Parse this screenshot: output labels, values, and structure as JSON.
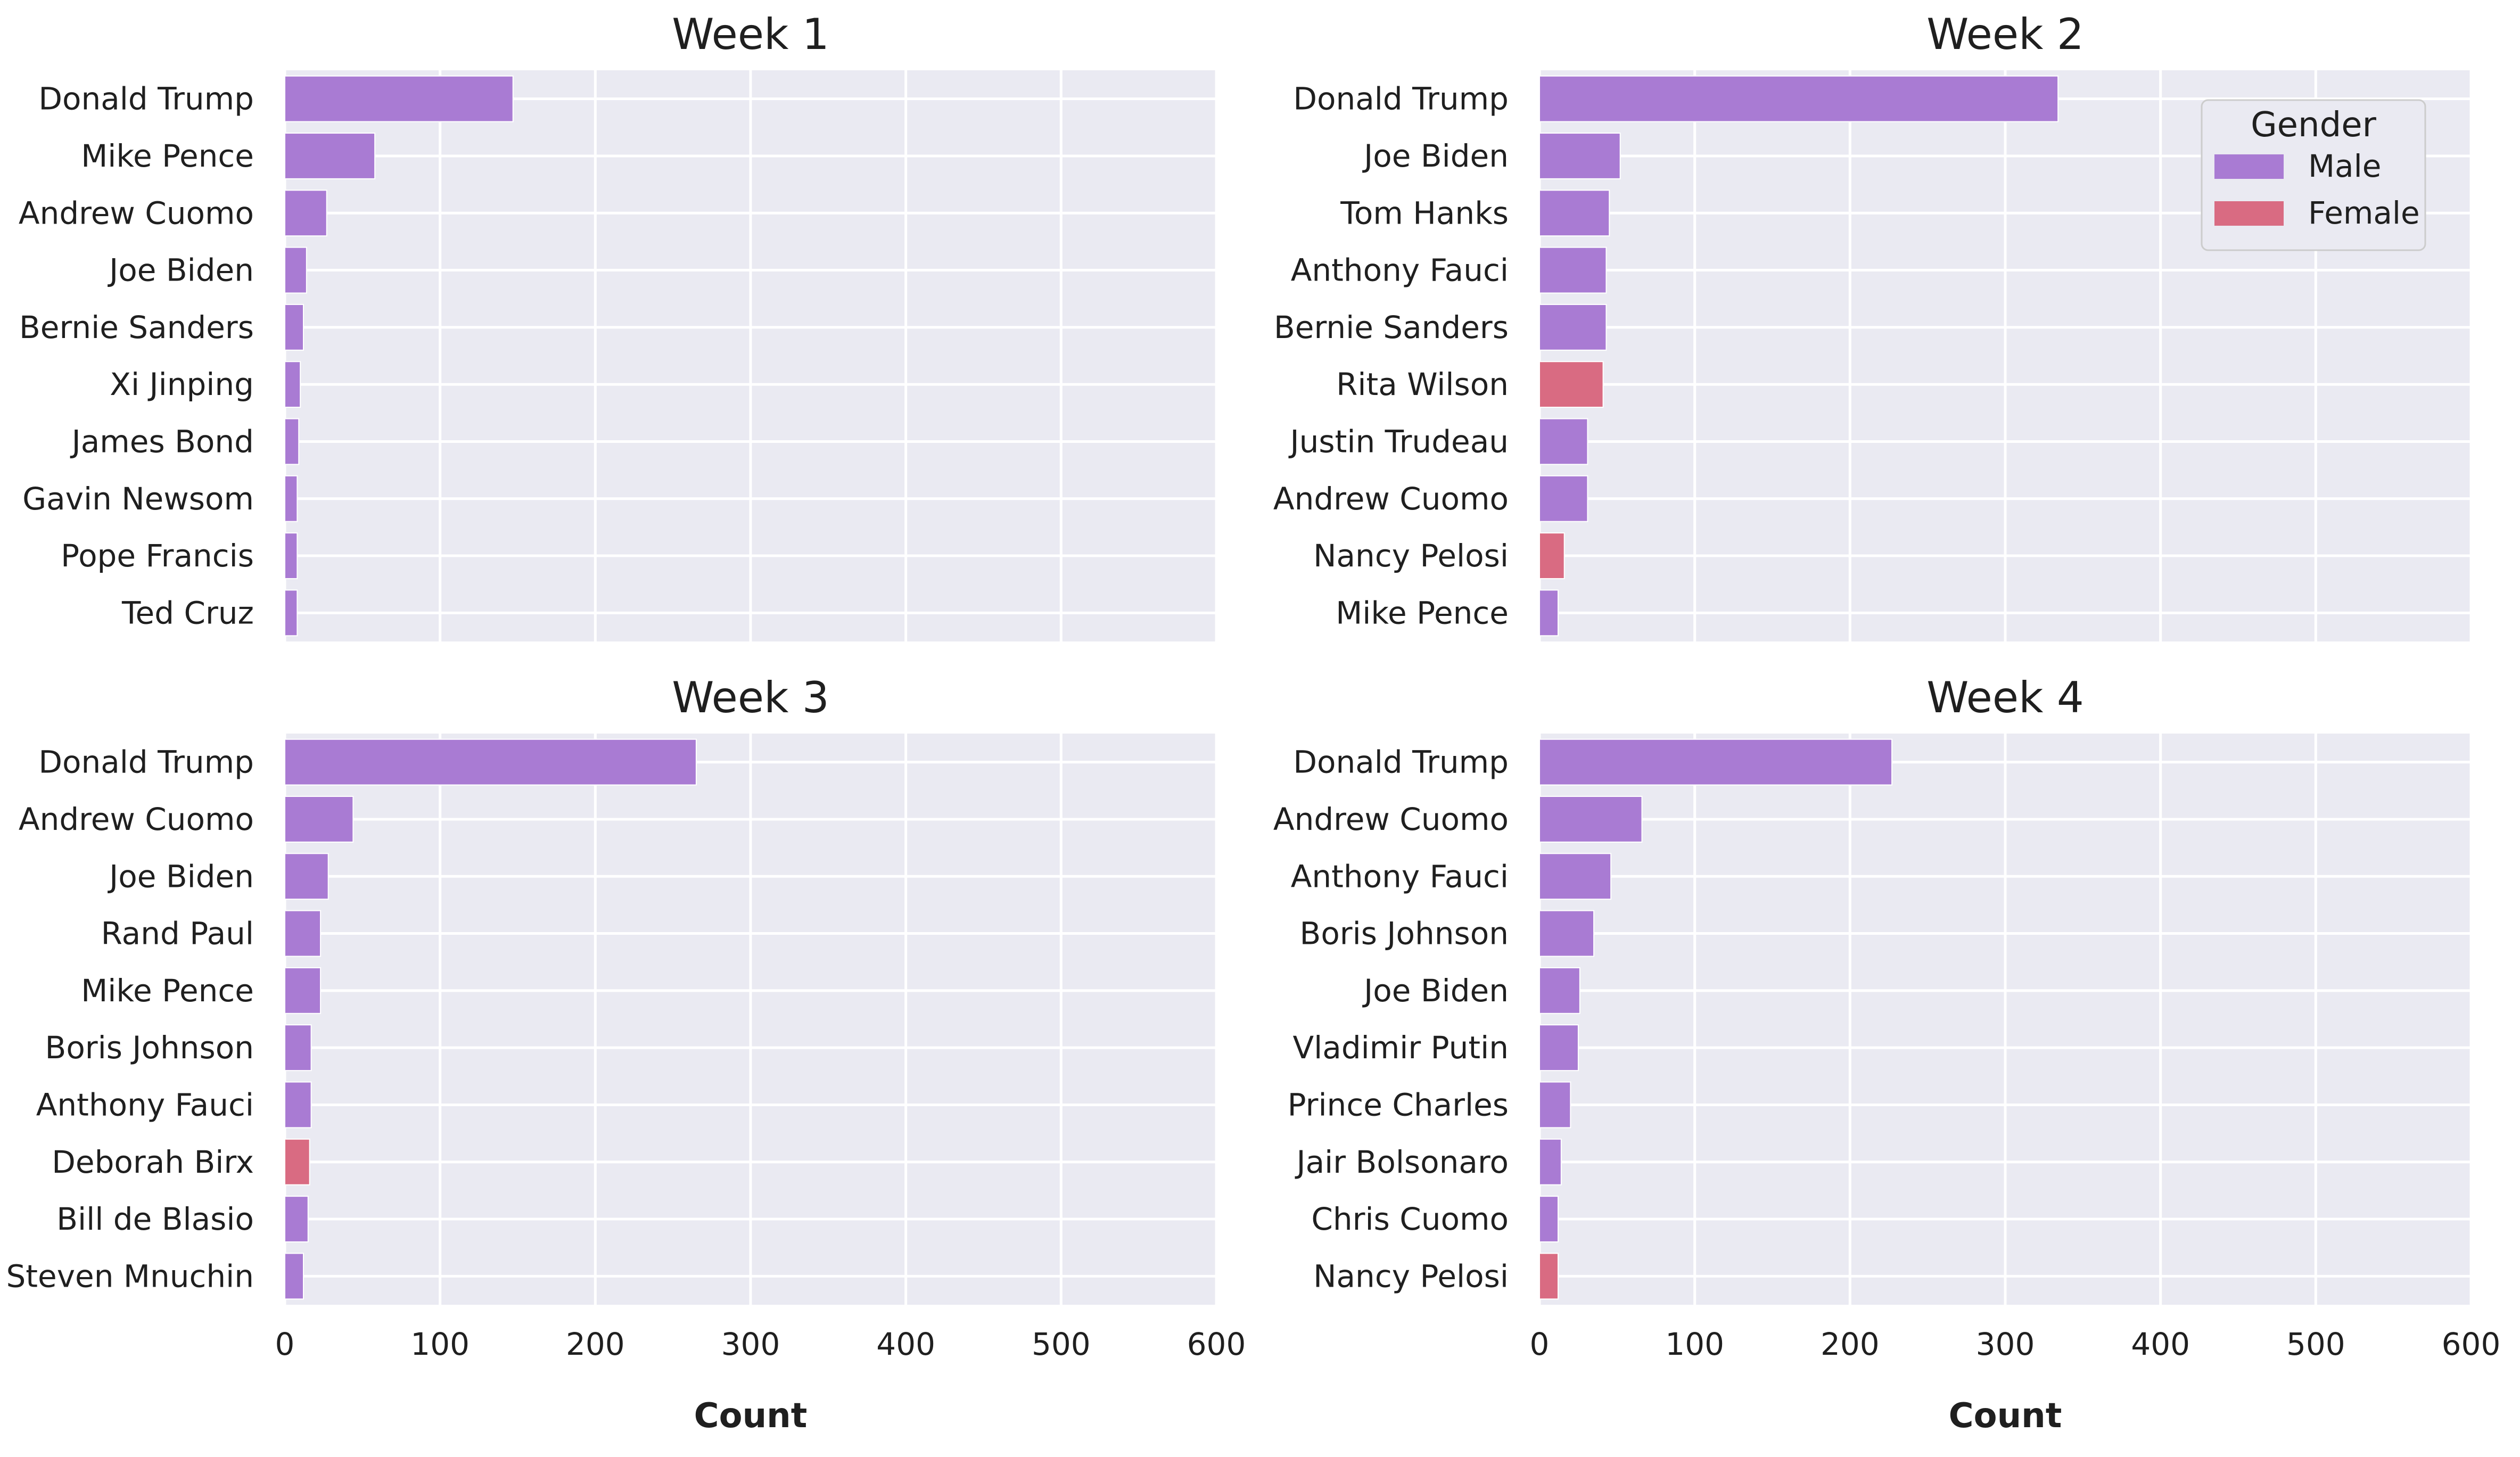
{
  "colors": {
    "male": "#a97bd3",
    "female": "#d96b82",
    "plot_background": "#eaeaf2",
    "grid": "#ffffff",
    "text": "#1f1f1f"
  },
  "legend": {
    "title": "Gender",
    "entries": [
      {
        "label": "Male",
        "color_key": "male"
      },
      {
        "label": "Female",
        "color_key": "female"
      }
    ],
    "placement": "top-right of Week 2 panel"
  },
  "chart_data": [
    {
      "type": "bar",
      "orientation": "horizontal",
      "title": "Week 1",
      "xlabel": "",
      "xlim": [
        0,
        600
      ],
      "xticks": [
        0,
        100,
        200,
        300,
        400,
        500,
        600
      ],
      "show_xticks": false,
      "grid": true,
      "categories": [
        "Donald Trump",
        "Mike Pence",
        "Andrew Cuomo",
        "Joe Biden",
        "Bernie Sanders",
        "Xi Jinping",
        "James Bond",
        "Gavin Newsom",
        "Pope Francis",
        "Ted Cruz"
      ],
      "values": [
        147,
        58,
        27,
        14,
        12,
        10,
        9,
        8,
        8,
        8
      ],
      "gender": [
        "Male",
        "Male",
        "Male",
        "Male",
        "Male",
        "Male",
        "Male",
        "Male",
        "Male",
        "Male"
      ]
    },
    {
      "type": "bar",
      "orientation": "horizontal",
      "title": "Week 2",
      "xlabel": "",
      "xlim": [
        0,
        600
      ],
      "xticks": [
        0,
        100,
        200,
        300,
        400,
        500,
        600
      ],
      "show_xticks": false,
      "grid": true,
      "categories": [
        "Donald Trump",
        "Joe Biden",
        "Tom Hanks",
        "Anthony Fauci",
        "Bernie Sanders",
        "Rita Wilson",
        "Justin Trudeau",
        "Andrew Cuomo",
        "Nancy Pelosi",
        "Mike Pence"
      ],
      "values": [
        334,
        52,
        45,
        43,
        43,
        41,
        31,
        31,
        16,
        12
      ],
      "gender": [
        "Male",
        "Male",
        "Male",
        "Male",
        "Male",
        "Female",
        "Male",
        "Male",
        "Female",
        "Male"
      ]
    },
    {
      "type": "bar",
      "orientation": "horizontal",
      "title": "Week 3",
      "xlabel": "Count",
      "xlim": [
        0,
        600
      ],
      "xticks": [
        0,
        100,
        200,
        300,
        400,
        500,
        600
      ],
      "show_xticks": true,
      "grid": true,
      "categories": [
        "Donald Trump",
        "Andrew Cuomo",
        "Joe Biden",
        "Rand Paul",
        "Mike Pence",
        "Boris Johnson",
        "Anthony Fauci",
        "Deborah Birx",
        "Bill de Blasio",
        "Steven Mnuchin"
      ],
      "values": [
        265,
        44,
        28,
        23,
        23,
        17,
        17,
        16,
        15,
        12
      ],
      "gender": [
        "Male",
        "Male",
        "Male",
        "Male",
        "Male",
        "Male",
        "Male",
        "Female",
        "Male",
        "Male"
      ]
    },
    {
      "type": "bar",
      "orientation": "horizontal",
      "title": "Week 4",
      "xlabel": "Count",
      "xlim": [
        0,
        600
      ],
      "xticks": [
        0,
        100,
        200,
        300,
        400,
        500,
        600
      ],
      "show_xticks": true,
      "grid": true,
      "categories": [
        "Donald Trump",
        "Andrew Cuomo",
        "Anthony Fauci",
        "Boris Johnson",
        "Joe Biden",
        "Vladimir Putin",
        "Prince Charles",
        "Jair Bolsonaro",
        "Chris Cuomo",
        "Nancy Pelosi"
      ],
      "values": [
        227,
        66,
        46,
        35,
        26,
        25,
        20,
        14,
        12,
        12
      ],
      "gender": [
        "Male",
        "Male",
        "Male",
        "Male",
        "Male",
        "Male",
        "Male",
        "Male",
        "Male",
        "Female"
      ]
    }
  ]
}
